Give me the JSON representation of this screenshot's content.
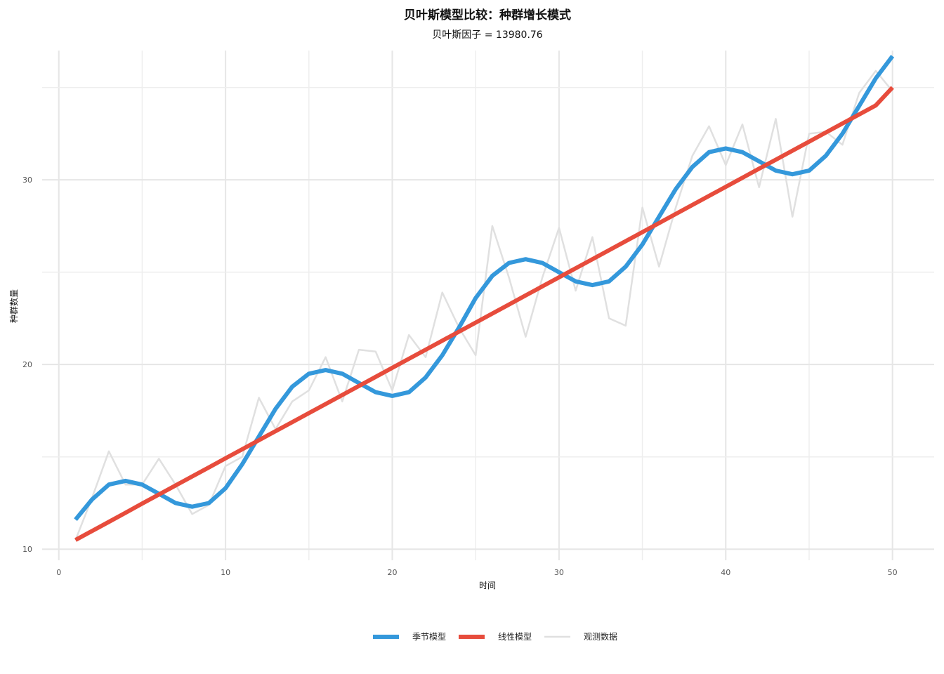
{
  "chart_data": {
    "type": "line",
    "title": "贝叶斯模型比较：种群增长模式",
    "subtitle": "贝叶斯因子 = 13980.76",
    "xlabel": "时间",
    "ylabel": "种群数量",
    "xlim": [
      -1,
      52.5
    ],
    "ylim": [
      9.4,
      37.0
    ],
    "x_ticks": [
      0,
      10,
      20,
      30,
      40,
      50
    ],
    "y_ticks": [
      10,
      20,
      30
    ],
    "grid": true,
    "legend_position": "bottom",
    "x": [
      1,
      2,
      3,
      4,
      5,
      6,
      7,
      8,
      9,
      10,
      11,
      12,
      13,
      14,
      15,
      16,
      17,
      18,
      19,
      20,
      21,
      22,
      23,
      24,
      25,
      26,
      27,
      28,
      29,
      30,
      31,
      32,
      33,
      34,
      35,
      36,
      37,
      38,
      39,
      40,
      41,
      42,
      43,
      44,
      45,
      46,
      47,
      48,
      49,
      50
    ],
    "series": [
      {
        "name": "观测数据",
        "color": "#e0e0e0",
        "values": [
          10.5,
          12.8,
          15.3,
          13.5,
          13.5,
          14.9,
          13.5,
          11.9,
          12.4,
          14.5,
          15.0,
          18.2,
          16.5,
          18.0,
          18.6,
          20.4,
          18.0,
          20.8,
          20.7,
          18.6,
          21.6,
          20.4,
          23.9,
          22.0,
          20.5,
          27.5,
          24.7,
          21.5,
          24.7,
          27.4,
          24.0,
          26.9,
          22.5,
          22.1,
          28.5,
          25.3,
          28.5,
          31.3,
          32.9,
          30.8,
          33.0,
          29.6,
          33.3,
          28.0,
          32.5,
          32.6,
          31.9,
          34.7,
          35.9,
          34.8
        ]
      },
      {
        "name": "季节模型",
        "color": "#3498db",
        "values": [
          11.6,
          12.7,
          13.5,
          13.7,
          13.5,
          13.0,
          12.5,
          12.3,
          12.5,
          13.3,
          14.6,
          16.1,
          17.6,
          18.8,
          19.5,
          19.7,
          19.5,
          19.0,
          18.5,
          18.3,
          18.5,
          19.3,
          20.5,
          22.0,
          23.6,
          24.8,
          25.5,
          25.7,
          25.5,
          25.0,
          24.5,
          24.3,
          24.5,
          25.3,
          26.5,
          28.0,
          29.5,
          30.7,
          31.5,
          31.7,
          31.5,
          31.0,
          30.5,
          30.3,
          30.5,
          31.3,
          32.5,
          34.0,
          35.5,
          36.7
        ]
      },
      {
        "name": "线性模型",
        "color": "#e74c3c",
        "values": [
          10.5,
          10.99,
          11.48,
          11.97,
          12.47,
          12.96,
          13.45,
          13.94,
          14.43,
          14.92,
          15.41,
          15.9,
          16.39,
          16.88,
          17.37,
          17.86,
          18.35,
          18.84,
          19.33,
          19.82,
          20.31,
          20.8,
          21.29,
          21.78,
          22.27,
          22.76,
          23.25,
          23.74,
          24.23,
          24.72,
          25.21,
          25.7,
          26.19,
          26.68,
          27.17,
          27.66,
          28.15,
          28.64,
          29.13,
          29.62,
          30.11,
          30.6,
          31.09,
          31.58,
          32.07,
          32.56,
          33.05,
          33.54,
          34.03,
          35.0
        ]
      }
    ],
    "legend": [
      {
        "name": "季节模型",
        "color": "#3498db"
      },
      {
        "name": "线性模型",
        "color": "#e74c3c"
      },
      {
        "name": "观测数据",
        "color": "#e0e0e0"
      }
    ]
  }
}
